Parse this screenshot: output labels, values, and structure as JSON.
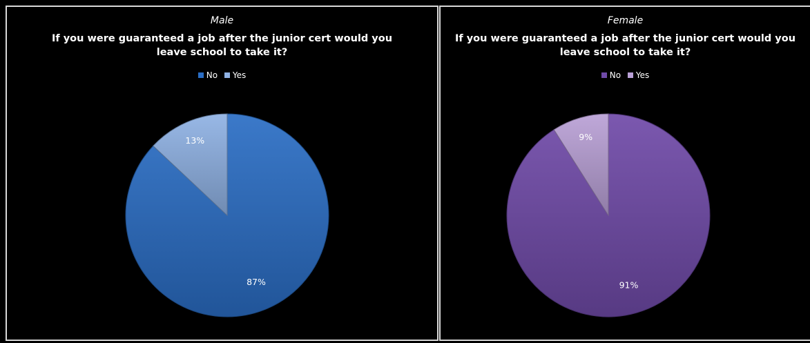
{
  "chart_data": [
    {
      "type": "pie",
      "subtitle": "Male",
      "title_lines": [
        "If you were guaranteed a job after the junior cert would you",
        "leave school to take it?"
      ],
      "categories": [
        "No",
        "Yes"
      ],
      "values": [
        87,
        13
      ],
      "labels": [
        "87%",
        "13%"
      ],
      "colors": [
        "#2a6dc4",
        "#8fb2e4"
      ],
      "legend_position": "top"
    },
    {
      "type": "pie",
      "subtitle": "Female",
      "title_lines": [
        "If you were guaranteed a job after the junior cert would you",
        "leave school to take it?"
      ],
      "categories": [
        "No",
        "Yes"
      ],
      "values": [
        91,
        9
      ],
      "labels": [
        "91%",
        "9%"
      ],
      "colors": [
        "#6f4aa8",
        "#b9a0d6"
      ],
      "legend_position": "top"
    }
  ]
}
